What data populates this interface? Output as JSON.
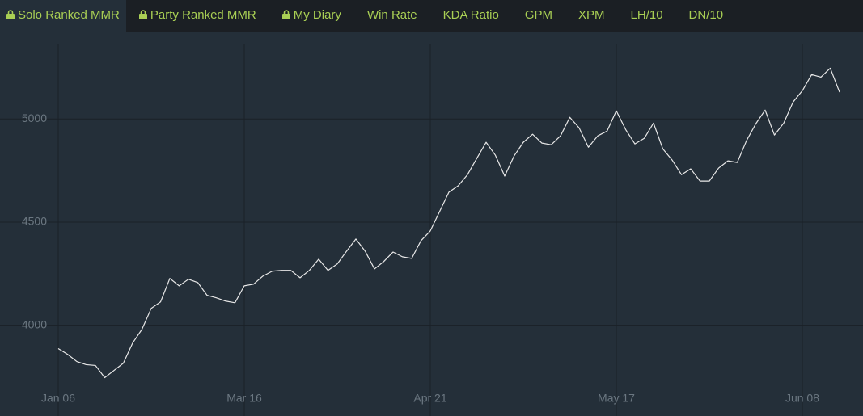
{
  "tabs": [
    "Solo Ranked MMR",
    "Party Ranked MMR",
    "My Diary",
    "Win Rate",
    "KDA Ratio",
    "GPM",
    "XPM",
    "LH/10",
    "DN/10"
  ],
  "chart_data": {
    "type": "line",
    "categories": [
      "Jan 06",
      null,
      null,
      null,
      null,
      null,
      null,
      null,
      null,
      null,
      null,
      null,
      null,
      null,
      null,
      null,
      null,
      null,
      null,
      null,
      "Mar 16",
      null,
      null,
      null,
      null,
      null,
      null,
      null,
      null,
      null,
      null,
      null,
      null,
      null,
      null,
      null,
      null,
      null,
      null,
      null,
      "Apr 21",
      null,
      null,
      null,
      null,
      null,
      null,
      null,
      null,
      null,
      null,
      null,
      null,
      null,
      null,
      null,
      null,
      null,
      null,
      null,
      "May 17",
      null,
      null,
      null,
      null,
      null,
      null,
      null,
      null,
      null,
      null,
      null,
      null,
      null,
      null,
      null,
      null,
      null,
      null,
      null,
      "Jun 08",
      null,
      null,
      null,
      null
    ],
    "values": [
      3887,
      3859,
      3824,
      3809,
      3805,
      3746,
      3781,
      3816,
      3914,
      3980,
      4082,
      4113,
      4227,
      4191,
      4223,
      4207,
      4145,
      4133,
      4117,
      4109,
      4191,
      4199,
      4238,
      4262,
      4266,
      4266,
      4230,
      4266,
      4320,
      4266,
      4297,
      4359,
      4418,
      4359,
      4273,
      4309,
      4355,
      4332,
      4324,
      4410,
      4457,
      4551,
      4645,
      4676,
      4730,
      4809,
      4887,
      4824,
      4723,
      4820,
      4887,
      4926,
      4883,
      4875,
      4918,
      5008,
      4957,
      4863,
      4918,
      4941,
      5039,
      4949,
      4879,
      4906,
      4980,
      4855,
      4801,
      4730,
      4758,
      4699,
      4699,
      4762,
      4797,
      4789,
      4895,
      4977,
      5043,
      4922,
      4980,
      5082,
      5137,
      5215,
      5203,
      5246,
      5130
    ],
    "color": "#e8e8e8",
    "ylim": [
      3560,
      5420
    ],
    "yticks": [
      4000,
      4500,
      5000
    ],
    "grid": true
  }
}
